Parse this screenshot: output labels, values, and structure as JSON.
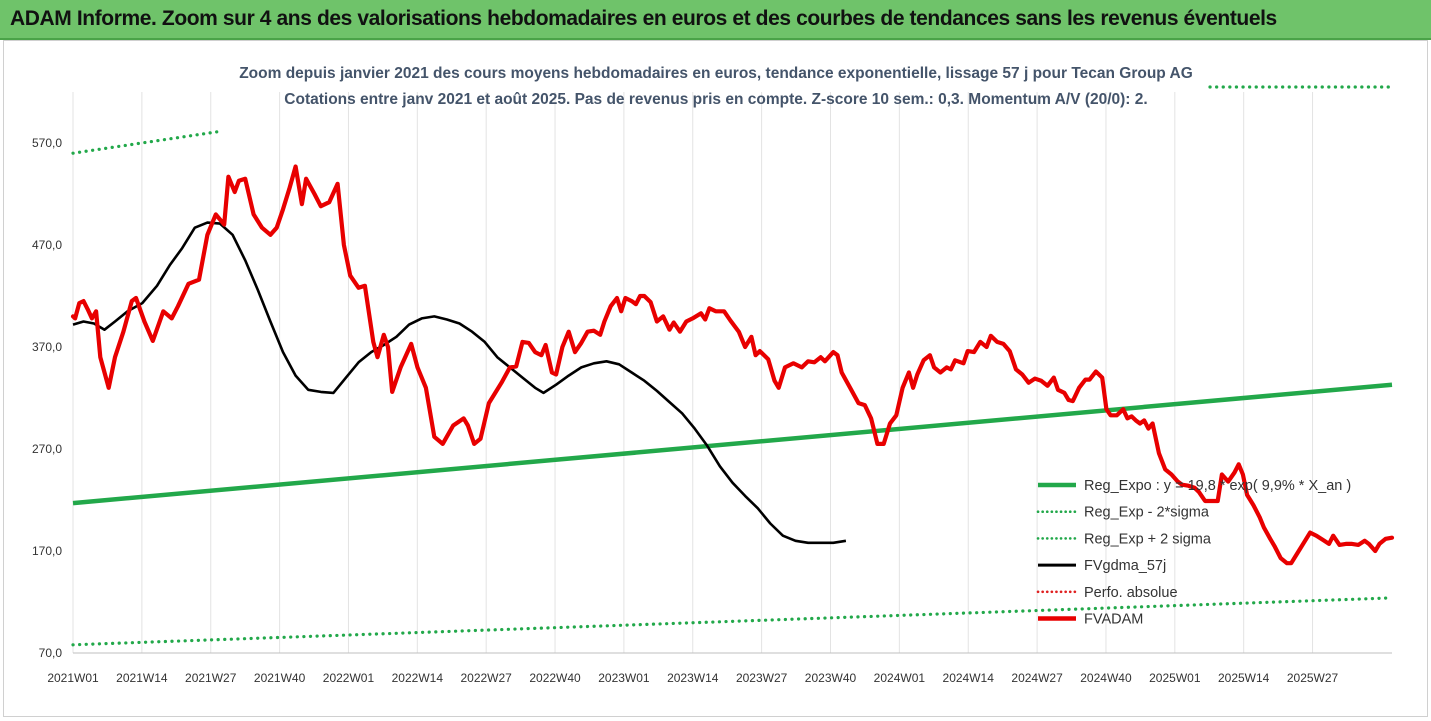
{
  "banner": {
    "title": "ADAM Informe. Zoom sur 4 ans des valorisations hebdomadaires en euros et des courbes de tendances sans les revenus éventuels"
  },
  "chart_data": {
    "type": "line",
    "title_line1": "Zoom depuis janvier 2021 des cours moyens hebdomadaires en euros, tendance exponentielle, lissage 57 j pour Tecan Group AG",
    "title_line2": "Cotations entre janv 2021 et août 2025.  Pas de revenus pris en compte. Z-score 10 sem.: 0,3. Momentum A/V (20/0): 2.",
    "x_tick_labels": [
      "2021W01",
      "2021W14",
      "2021W27",
      "2021W40",
      "2022W01",
      "2022W14",
      "2022W27",
      "2022W40",
      "2023W01",
      "2023W14",
      "2023W27",
      "2023W40",
      "2024W01",
      "2024W14",
      "2024W27",
      "2024W40",
      "2025W01",
      "2025W14",
      "2025W27"
    ],
    "ylim": [
      70,
      620
    ],
    "y_ticks": [
      70,
      170,
      270,
      370,
      470,
      570
    ],
    "y_tick_labels": [
      "70,0",
      "170,0",
      "270,0",
      "370,0",
      "470,0",
      "570,0"
    ],
    "grid": "vertical",
    "legend_position": "right",
    "n_weeks": 250,
    "series": [
      {
        "name": "Reg_Expo : y = 19,8 * exp( 9,9% *  X_an )",
        "key": "reg",
        "color": "#22a84a",
        "style": "solid",
        "points": [
          [
            0,
            217
          ],
          [
            249,
            333
          ]
        ]
      },
      {
        "name": "Reg_Exp - 2*sigma",
        "key": "reg_lo",
        "color": "#22a84a",
        "style": "dotted",
        "points": [
          [
            0,
            78
          ],
          [
            249,
            124
          ]
        ]
      },
      {
        "name": "Reg_Exp + 2 sigma",
        "key": "reg_hi",
        "color": "#22a84a",
        "style": "dotted",
        "points": [
          [
            0,
            560
          ],
          [
            249,
            606
          ]
        ]
      },
      {
        "name": "FVgdma_57j",
        "key": "ma",
        "color": "#000000",
        "style": "solid",
        "points": [
          [
            0,
            392
          ],
          [
            5,
            395
          ],
          [
            10,
            393
          ],
          [
            15,
            387
          ],
          [
            20,
            395
          ],
          [
            26,
            405
          ],
          [
            33,
            413
          ],
          [
            40,
            430
          ],
          [
            46,
            450
          ],
          [
            52,
            467
          ],
          [
            58,
            487
          ],
          [
            64,
            492
          ],
          [
            70,
            491
          ],
          [
            76,
            480
          ],
          [
            82,
            455
          ],
          [
            88,
            426
          ],
          [
            94,
            395
          ],
          [
            100,
            365
          ],
          [
            106,
            342
          ],
          [
            112,
            328
          ],
          [
            118,
            326
          ],
          [
            124,
            325
          ],
          [
            130,
            340
          ],
          [
            136,
            355
          ],
          [
            142,
            365
          ],
          [
            148,
            372
          ],
          [
            154,
            380
          ],
          [
            160,
            392
          ],
          [
            166,
            398
          ],
          [
            172,
            400
          ],
          [
            178,
            397
          ],
          [
            184,
            393
          ],
          [
            190,
            385
          ],
          [
            196,
            375
          ],
          [
            202,
            360
          ],
          [
            208,
            350
          ],
          [
            214,
            340
          ],
          [
            220,
            330
          ],
          [
            224,
            325
          ],
          [
            230,
            333
          ],
          [
            236,
            342
          ],
          [
            242,
            350
          ],
          [
            248,
            354
          ],
          [
            254,
            356
          ],
          [
            260,
            353
          ],
          [
            266,
            345
          ],
          [
            272,
            337
          ],
          [
            278,
            327
          ],
          [
            284,
            316
          ],
          [
            290,
            305
          ],
          [
            296,
            290
          ],
          [
            302,
            273
          ],
          [
            308,
            253
          ],
          [
            314,
            237
          ],
          [
            320,
            224
          ],
          [
            326,
            212
          ],
          [
            332,
            197
          ],
          [
            338,
            185
          ],
          [
            344,
            180
          ],
          [
            350,
            178
          ],
          [
            356,
            178
          ],
          [
            362,
            178
          ],
          [
            368,
            180
          ]
        ]
      },
      {
        "name": "Perfo. absolue",
        "key": "perf",
        "color": "#e02020",
        "style": "dotted",
        "points": []
      },
      {
        "name": "FVADAM",
        "key": "fvadam",
        "color": "#e80000",
        "style": "solid",
        "points": [
          [
            0,
            400
          ],
          [
            1,
            398
          ],
          [
            3,
            413
          ],
          [
            5,
            415
          ],
          [
            7,
            407
          ],
          [
            9,
            398
          ],
          [
            11,
            405
          ],
          [
            13,
            360
          ],
          [
            17,
            330
          ],
          [
            20,
            360
          ],
          [
            24,
            385
          ],
          [
            28,
            415
          ],
          [
            30,
            418
          ],
          [
            34,
            395
          ],
          [
            38,
            376
          ],
          [
            43,
            405
          ],
          [
            47,
            398
          ],
          [
            50,
            410
          ],
          [
            55,
            432
          ],
          [
            60,
            436
          ],
          [
            64,
            480
          ],
          [
            68,
            500
          ],
          [
            72,
            490
          ],
          [
            74,
            537
          ],
          [
            77,
            522
          ],
          [
            79,
            533
          ],
          [
            82,
            535
          ],
          [
            86,
            500
          ],
          [
            90,
            487
          ],
          [
            94,
            480
          ],
          [
            97,
            487
          ],
          [
            100,
            505
          ],
          [
            103,
            525
          ],
          [
            106,
            547
          ],
          [
            109,
            510
          ],
          [
            111,
            535
          ],
          [
            115,
            520
          ],
          [
            118,
            508
          ],
          [
            122,
            512
          ],
          [
            126,
            530
          ],
          [
            129,
            470
          ],
          [
            132,
            440
          ],
          [
            136,
            428
          ],
          [
            139,
            430
          ],
          [
            143,
            375
          ],
          [
            145,
            360
          ],
          [
            148,
            382
          ],
          [
            150,
            370
          ],
          [
            152,
            326
          ],
          [
            156,
            350
          ],
          [
            161,
            373
          ],
          [
            164,
            350
          ],
          [
            168,
            330
          ],
          [
            172,
            282
          ],
          [
            176,
            275
          ],
          [
            181,
            293
          ],
          [
            186,
            300
          ],
          [
            188,
            293
          ],
          [
            191,
            275
          ],
          [
            194,
            280
          ],
          [
            198,
            315
          ],
          [
            204,
            335
          ],
          [
            208,
            350
          ],
          [
            211,
            351
          ],
          [
            214,
            375
          ],
          [
            217,
            374
          ],
          [
            220,
            365
          ],
          [
            223,
            362
          ],
          [
            225,
            372
          ],
          [
            228,
            345
          ],
          [
            230,
            343
          ],
          [
            233,
            370
          ],
          [
            236,
            385
          ],
          [
            239,
            365
          ],
          [
            242,
            374
          ],
          [
            245,
            385
          ],
          [
            248,
            386
          ],
          [
            251,
            382
          ],
          [
            253,
            395
          ],
          [
            256,
            410
          ],
          [
            259,
            418
          ],
          [
            261,
            405
          ],
          [
            263,
            418
          ],
          [
            266,
            415
          ],
          [
            268,
            412
          ],
          [
            270,
            420
          ],
          [
            272,
            420
          ],
          [
            275,
            414
          ],
          [
            278,
            395
          ],
          [
            281,
            400
          ],
          [
            284,
            387
          ],
          [
            286,
            394
          ],
          [
            289,
            385
          ],
          [
            292,
            395
          ],
          [
            295,
            398
          ],
          [
            299,
            403
          ],
          [
            301,
            397
          ],
          [
            303,
            408
          ],
          [
            306,
            405
          ],
          [
            310,
            405
          ],
          [
            313,
            396
          ],
          [
            317,
            385
          ],
          [
            320,
            370
          ],
          [
            323,
            380
          ],
          [
            325,
            362
          ],
          [
            327,
            366
          ],
          [
            331,
            358
          ],
          [
            334,
            337
          ],
          [
            336,
            330
          ],
          [
            339,
            350
          ],
          [
            343,
            354
          ],
          [
            347,
            350
          ],
          [
            350,
            356
          ],
          [
            353,
            355
          ],
          [
            356,
            360
          ],
          [
            358,
            356
          ],
          [
            362,
            365
          ],
          [
            364,
            362
          ],
          [
            366,
            345
          ],
          [
            370,
            330
          ],
          [
            374,
            315
          ],
          [
            377,
            313
          ],
          [
            380,
            300
          ],
          [
            383,
            275
          ],
          [
            386,
            275
          ],
          [
            389,
            295
          ],
          [
            392,
            303
          ],
          [
            395,
            330
          ],
          [
            398,
            345
          ],
          [
            400,
            330
          ],
          [
            402,
            343
          ],
          [
            405,
            357
          ],
          [
            408,
            362
          ],
          [
            410,
            350
          ],
          [
            413,
            345
          ],
          [
            416,
            350
          ],
          [
            418,
            348
          ],
          [
            420,
            357
          ],
          [
            424,
            354
          ],
          [
            426,
            366
          ],
          [
            429,
            365
          ],
          [
            432,
            375
          ],
          [
            435,
            370
          ],
          [
            437,
            381
          ],
          [
            440,
            375
          ],
          [
            443,
            373
          ],
          [
            446,
            366
          ],
          [
            449,
            348
          ],
          [
            452,
            343
          ],
          [
            455,
            335
          ],
          [
            458,
            339
          ],
          [
            461,
            337
          ],
          [
            464,
            332
          ],
          [
            467,
            340
          ],
          [
            469,
            328
          ],
          [
            472,
            325
          ],
          [
            474,
            318
          ],
          [
            476,
            317
          ],
          [
            479,
            330
          ],
          [
            482,
            338
          ],
          [
            484,
            338
          ],
          [
            487,
            346
          ],
          [
            490,
            340
          ],
          [
            492,
            309
          ],
          [
            494,
            303
          ],
          [
            497,
            303
          ],
          [
            500,
            309
          ],
          [
            502,
            300
          ],
          [
            504,
            302
          ],
          [
            506,
            298
          ],
          [
            508,
            295
          ],
          [
            510,
            298
          ],
          [
            512,
            290
          ],
          [
            514,
            295
          ],
          [
            517,
            266
          ],
          [
            520,
            250
          ],
          [
            523,
            245
          ],
          [
            526,
            238
          ],
          [
            528,
            235
          ],
          [
            531,
            234
          ],
          [
            534,
            232
          ],
          [
            536,
            228
          ],
          [
            539,
            219
          ],
          [
            542,
            219
          ],
          [
            545,
            219
          ],
          [
            547,
            245
          ],
          [
            550,
            238
          ],
          [
            553,
            247
          ],
          [
            555,
            255
          ],
          [
            557,
            245
          ],
          [
            559,
            225
          ],
          [
            562,
            215
          ],
          [
            565,
            203
          ],
          [
            567,
            193
          ],
          [
            570,
            182
          ],
          [
            572,
            175
          ],
          [
            575,
            163
          ],
          [
            578,
            158
          ],
          [
            580,
            158
          ],
          [
            583,
            168
          ],
          [
            586,
            178
          ],
          [
            589,
            188
          ],
          [
            592,
            185
          ],
          [
            595,
            181
          ],
          [
            598,
            177
          ],
          [
            600,
            185
          ],
          [
            603,
            176
          ],
          [
            606,
            177
          ],
          [
            609,
            177
          ],
          [
            612,
            176
          ],
          [
            615,
            180
          ],
          [
            617,
            177
          ],
          [
            620,
            170
          ],
          [
            622,
            177
          ],
          [
            625,
            182
          ],
          [
            628,
            183
          ]
        ]
      }
    ]
  }
}
